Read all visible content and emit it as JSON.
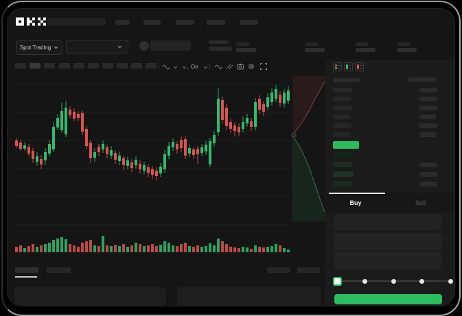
{
  "app": {
    "brand": "OKX"
  },
  "colors": {
    "up": "#2dbd6e",
    "down": "#dc524e",
    "accent_green": "#2abd5f",
    "bg": "#151515",
    "panel": "#1b1b1b",
    "skeleton_block": "#2a2a2a",
    "tab_indicator": "#e8e8e8"
  },
  "subheader": {
    "market_selector_label": "Spot Trading"
  },
  "toolbar": {
    "icons": [
      "indicators",
      "chevron-down",
      "candle-type-chevron",
      "compare",
      "chevron-down",
      "line-tool",
      "draw-tool",
      "camera",
      "settings",
      "fullscreen"
    ]
  },
  "chart_data": {
    "type": "candlestick+volume+depth",
    "note": "no axis labels visible; values are screen-pixel geometry read from image",
    "x_range": [
      20,
      422
    ],
    "y_range": [
      108,
      330
    ],
    "gridlines_y": [
      122,
      163,
      204,
      245,
      286,
      327
    ],
    "volume_baseline_y": 367,
    "candles": [
      [
        23,
        "r",
        204,
        212,
        200,
        215,
        8
      ],
      [
        29,
        "r",
        207,
        216,
        203,
        219,
        10
      ],
      [
        35,
        "g",
        211,
        216,
        207,
        219,
        6
      ],
      [
        41,
        "r",
        213,
        223,
        209,
        227,
        9
      ],
      [
        47,
        "r",
        219,
        231,
        215,
        237,
        12
      ],
      [
        53,
        "g",
        227,
        235,
        221,
        241,
        8
      ],
      [
        59,
        "r",
        231,
        239,
        225,
        246,
        10
      ],
      [
        65,
        "g",
        221,
        233,
        215,
        240,
        12
      ],
      [
        71,
        "g",
        209,
        223,
        203,
        227,
        14
      ],
      [
        77,
        "g",
        184,
        217,
        177,
        221,
        18
      ],
      [
        83,
        "g",
        171,
        185,
        165,
        189,
        20
      ],
      [
        89,
        "g",
        161,
        189,
        149,
        193,
        22
      ],
      [
        95,
        "g",
        156,
        195,
        146,
        199,
        19
      ],
      [
        101,
        "r",
        159,
        167,
        154,
        171,
        12
      ],
      [
        107,
        "r",
        162,
        172,
        157,
        176,
        10
      ],
      [
        113,
        "r",
        165,
        171,
        161,
        175,
        8
      ],
      [
        119,
        "r",
        164,
        191,
        160,
        196,
        14
      ],
      [
        125,
        "r",
        187,
        212,
        183,
        217,
        16
      ],
      [
        131,
        "r",
        207,
        230,
        203,
        237,
        18
      ],
      [
        137,
        "g",
        221,
        229,
        215,
        235,
        10
      ],
      [
        143,
        "r",
        213,
        221,
        209,
        227,
        9
      ],
      [
        149,
        "g",
        209,
        217,
        204,
        222,
        24
      ],
      [
        155,
        "r",
        214,
        224,
        210,
        230,
        10
      ],
      [
        161,
        "g",
        218,
        226,
        212,
        231,
        9
      ],
      [
        167,
        "r",
        222,
        232,
        218,
        238,
        11
      ],
      [
        173,
        "g",
        226,
        234,
        220,
        240,
        9
      ],
      [
        179,
        "r",
        230,
        240,
        226,
        247,
        12
      ],
      [
        185,
        "g",
        233,
        241,
        228,
        246,
        8
      ],
      [
        191,
        "r",
        236,
        244,
        231,
        250,
        10
      ],
      [
        197,
        "g",
        232,
        240,
        227,
        245,
        14
      ],
      [
        203,
        "r",
        238,
        246,
        233,
        252,
        12
      ],
      [
        209,
        "g",
        240,
        248,
        235,
        253,
        9
      ],
      [
        215,
        "r",
        243,
        251,
        238,
        257,
        10
      ],
      [
        221,
        "r",
        246,
        254,
        241,
        260,
        12
      ],
      [
        227,
        "r",
        248,
        256,
        243,
        262,
        9
      ],
      [
        233,
        "g",
        242,
        252,
        237,
        257,
        11
      ],
      [
        239,
        "g",
        224,
        246,
        218,
        251,
        16
      ],
      [
        245,
        "g",
        212,
        226,
        206,
        231,
        14
      ],
      [
        251,
        "g",
        206,
        214,
        201,
        219,
        10
      ],
      [
        257,
        "r",
        209,
        217,
        205,
        223,
        9
      ],
      [
        263,
        "r",
        203,
        215,
        199,
        221,
        12
      ],
      [
        269,
        "r",
        202,
        226,
        198,
        231,
        14
      ],
      [
        275,
        "g",
        215,
        223,
        210,
        228,
        9
      ],
      [
        281,
        "r",
        217,
        225,
        213,
        231,
        8
      ],
      [
        287,
        "r",
        216,
        224,
        212,
        238,
        10
      ],
      [
        293,
        "g",
        214,
        222,
        209,
        227,
        8
      ],
      [
        299,
        "g",
        210,
        220,
        205,
        225,
        9
      ],
      [
        305,
        "g",
        205,
        239,
        200,
        243,
        13
      ],
      [
        311,
        "g",
        196,
        208,
        190,
        213,
        10
      ],
      [
        317,
        "g",
        143,
        192,
        128,
        197,
        20
      ],
      [
        323,
        "r",
        145,
        174,
        140,
        179,
        16
      ],
      [
        329,
        "r",
        156,
        183,
        151,
        189,
        12
      ],
      [
        335,
        "r",
        177,
        187,
        172,
        193,
        8
      ],
      [
        341,
        "r",
        182,
        190,
        177,
        197,
        7
      ],
      [
        347,
        "r",
        184,
        192,
        179,
        198,
        6
      ],
      [
        353,
        "g",
        177,
        187,
        169,
        192,
        8
      ],
      [
        359,
        "g",
        171,
        179,
        165,
        184,
        7
      ],
      [
        365,
        "r",
        176,
        184,
        171,
        190,
        5
      ],
      [
        371,
        "g",
        148,
        184,
        142,
        189,
        10
      ],
      [
        377,
        "r",
        143,
        159,
        138,
        165,
        8
      ],
      [
        383,
        "r",
        151,
        162,
        146,
        168,
        7
      ],
      [
        389,
        "g",
        141,
        155,
        135,
        160,
        8
      ],
      [
        395,
        "g",
        134,
        148,
        128,
        153,
        9
      ],
      [
        401,
        "g",
        129,
        143,
        123,
        148,
        12
      ],
      [
        407,
        "r",
        137,
        149,
        132,
        155,
        10
      ],
      [
        413,
        "g",
        134,
        150,
        129,
        156,
        6
      ],
      [
        419,
        "g",
        131,
        146,
        125,
        151,
        4
      ]
    ],
    "depth": {
      "asks_area": [
        [
          425,
          110
        ],
        [
          477,
          110
        ],
        [
          471,
          120
        ],
        [
          466,
          129
        ],
        [
          461,
          138
        ],
        [
          456,
          147
        ],
        [
          452,
          155
        ],
        [
          448,
          163
        ],
        [
          443,
          171
        ],
        [
          438,
          179
        ],
        [
          432,
          187
        ],
        [
          426,
          195
        ]
      ],
      "bids_area": [
        [
          425,
          197
        ],
        [
          434,
          210
        ],
        [
          440,
          222
        ],
        [
          445,
          233
        ],
        [
          450,
          245
        ],
        [
          454,
          257
        ],
        [
          458,
          268
        ],
        [
          462,
          280
        ],
        [
          466,
          292
        ],
        [
          470,
          303
        ],
        [
          474,
          313
        ],
        [
          478,
          322
        ],
        [
          425,
          322
        ]
      ],
      "asks_fill": "rgba(190,70,70,0.12)",
      "bids_fill": "rgba(45,189,110,0.10)",
      "asks_line": "rgba(210,100,100,0.55)",
      "bids_line": "rgba(90,205,150,0.50)"
    }
  },
  "orderbook": {
    "view_toggles": [
      {
        "name": "book-split-view",
        "marks": [
          "down",
          "up"
        ]
      },
      {
        "name": "book-bids-view",
        "marks": [
          "up"
        ]
      },
      {
        "name": "book-asks-view",
        "marks": [
          "down"
        ]
      }
    ],
    "asks": [
      {
        "p": 28,
        "a": 26
      },
      {
        "p": 26,
        "a": 25
      },
      {
        "p": 28,
        "a": 26
      },
      {
        "p": 25,
        "a": 24
      },
      {
        "p": 27,
        "a": 26
      },
      {
        "p": 26,
        "a": 25
      }
    ],
    "last_price": {
      "side": "up",
      "width": 38
    },
    "bids": [
      {
        "p": 30,
        "a": 0
      },
      {
        "p": 28,
        "a": 26
      },
      {
        "p": 30,
        "a": 26
      },
      {
        "p": 28,
        "a": 26
      }
    ],
    "bid_row_colors": [
      "#16231b",
      "#1a2e22",
      "#1d3526",
      "#192b20"
    ],
    "ask_block_color": "#262626",
    "amount_block_color": "#2b2b2b",
    "header_block_color": "#2c2c2c"
  },
  "trade_panel": {
    "tabs": [
      {
        "label": "Buy",
        "active": true
      },
      {
        "label": "Sell",
        "active": false
      }
    ],
    "input_count": 3,
    "slider": {
      "stops": 5,
      "active_stop": 0
    }
  }
}
